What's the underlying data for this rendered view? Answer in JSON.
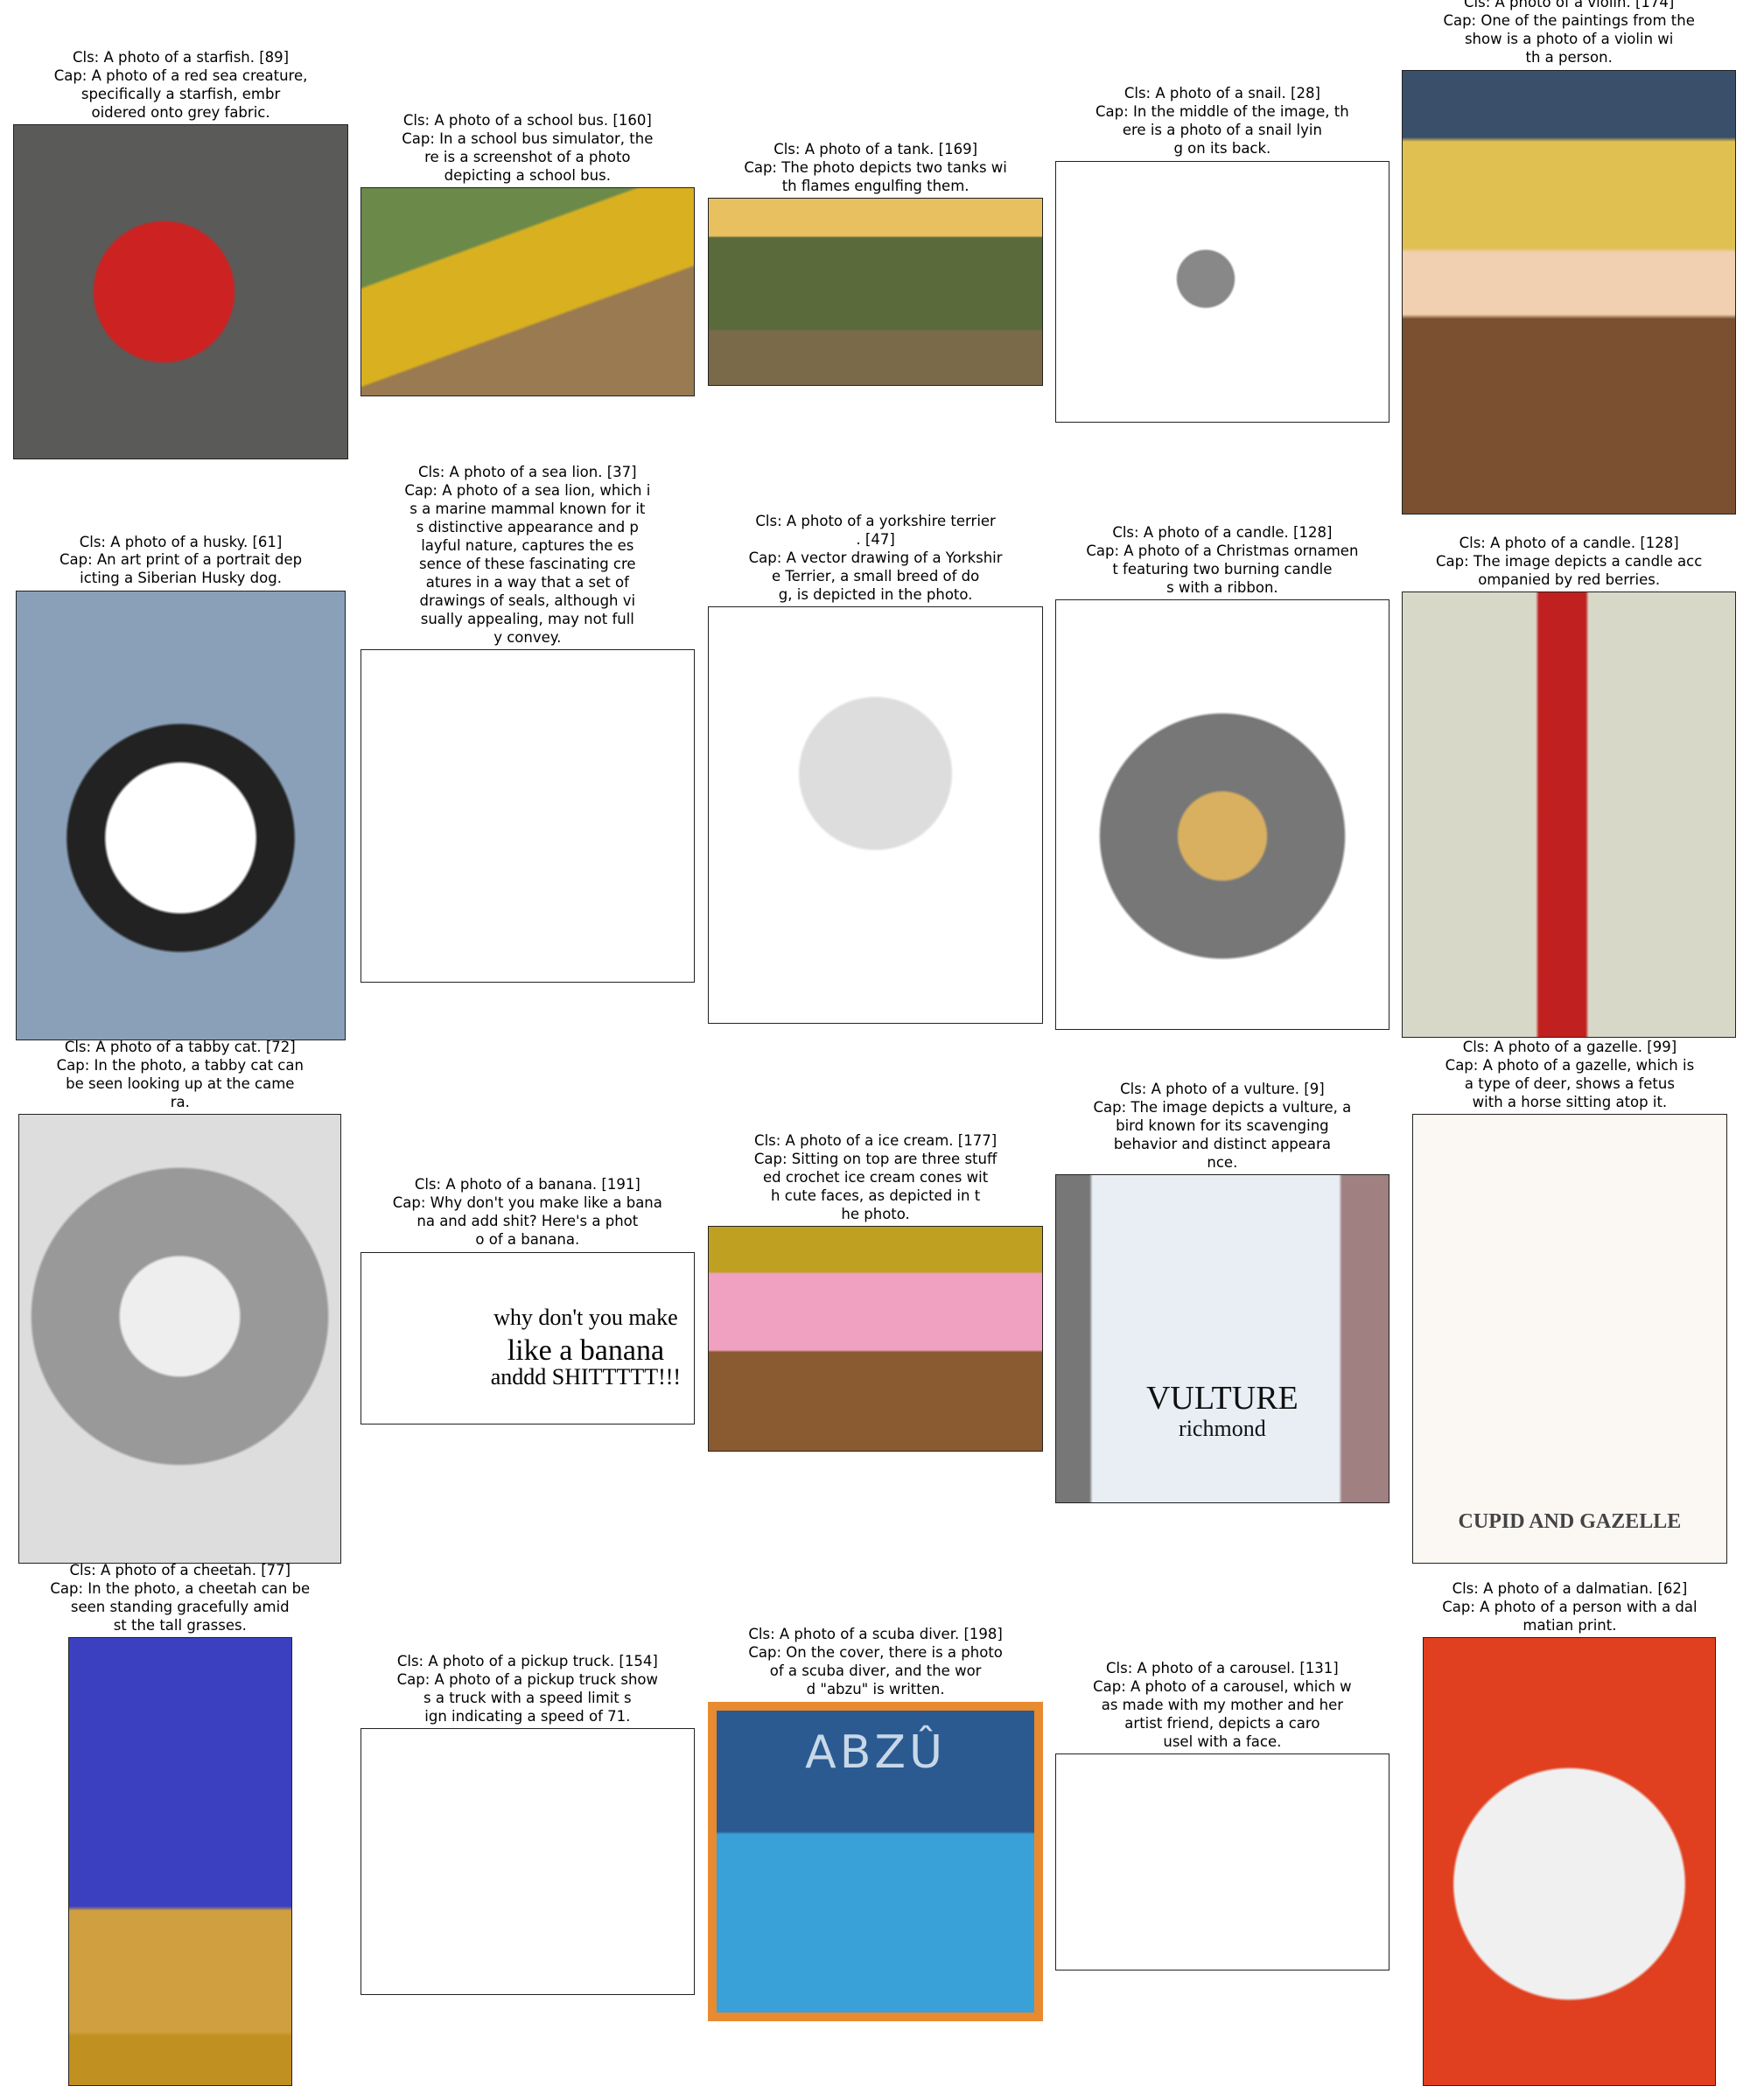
{
  "cells": [
    {
      "lines": [
        "Cls: A photo of a starfish. [89]",
        "Cap: A photo of a red sea creature,",
        "specifically a starfish, embr",
        "oidered onto grey fabric."
      ]
    },
    {
      "lines": [
        "Cls: A photo of a school bus. [160]",
        "Cap: In a school bus simulator, the",
        "re is a screenshot of a photo",
        "depicting a school bus."
      ]
    },
    {
      "lines": [
        "Cls: A photo of a tank. [169]",
        "Cap: The photo depicts two tanks wi",
        "th flames engulfing them."
      ]
    },
    {
      "lines": [
        "Cls: A photo of a snail. [28]",
        "Cap: In the middle of the image, th",
        "ere is a photo of a snail lyin",
        "g on its back."
      ]
    },
    {
      "lines": [
        "Cls: A photo of a violin. [174]",
        "Cap: One of the paintings from the",
        "show is a photo of a violin wi",
        "th a person."
      ]
    },
    {
      "lines": [
        "Cls: A photo of a husky. [61]",
        "Cap: An art print of a portrait dep",
        "icting a Siberian Husky dog."
      ]
    },
    {
      "lines": [
        "Cls: A photo of a sea lion. [37]",
        "Cap: A photo of a sea lion, which i",
        "s a marine mammal known for it",
        "s distinctive appearance and p",
        "layful nature, captures the es",
        "sence of these fascinating cre",
        "atures in a way that a set of",
        "drawings of seals, although vi",
        "sually appealing, may not full",
        "y convey."
      ]
    },
    {
      "lines": [
        "Cls: A photo of a yorkshire terrier",
        ". [47]",
        "Cap: A vector drawing of a Yorkshir",
        "e Terrier, a small breed of do",
        "g, is depicted in the photo."
      ]
    },
    {
      "lines": [
        "Cls: A photo of a candle. [128]",
        "Cap: A photo of a Christmas ornamen",
        "t featuring two burning candle",
        "s with a ribbon."
      ]
    },
    {
      "lines": [
        "Cls: A photo of a candle. [128]",
        "Cap: The image depicts a candle acc",
        "ompanied by red berries."
      ]
    },
    {
      "lines": [
        "Cls: A photo of a tabby cat. [72]",
        "Cap: In the photo, a tabby cat can",
        "be seen looking up at the came",
        "ra."
      ]
    },
    {
      "lines": [
        "Cls: A photo of a banana. [191]",
        "Cap: Why don't you make like a bana",
        "na and add shit? Here's a phot",
        "o of a banana."
      ],
      "image_text": [
        "why don't you make",
        "like a banana",
        "anddd SHITTTTT!!!"
      ]
    },
    {
      "lines": [
        "Cls: A photo of a ice cream. [177]",
        "Cap: Sitting on top are three stuff",
        "ed crochet ice cream cones wit",
        "h cute faces, as depicted in t",
        "he photo."
      ]
    },
    {
      "lines": [
        "Cls: A photo of a vulture. [9]",
        "Cap: The image depicts a vulture, a",
        "bird known for its scavenging",
        "behavior and distinct appeara",
        "nce."
      ],
      "image_text": [
        "VULTURE",
        "richmond"
      ]
    },
    {
      "lines": [
        "Cls: A photo of a gazelle. [99]",
        "Cap: A photo of a gazelle, which is",
        "a type of deer, shows a fetus",
        "with a horse sitting atop it."
      ],
      "image_text": [
        "CUPID AND GAZELLE"
      ]
    },
    {
      "lines": [
        "Cls: A photo of a cheetah. [77]",
        "Cap: In the photo, a cheetah can be",
        "seen standing gracefully amid",
        "st the tall grasses."
      ]
    },
    {
      "lines": [
        "Cls: A photo of a pickup truck. [154]",
        "Cap: A photo of a pickup truck show",
        "s a truck with a speed limit s",
        "ign indicating a speed of 71."
      ]
    },
    {
      "lines": [
        "Cls: A photo of a scuba diver. [198]",
        "Cap: On the cover, there is a photo",
        "of a scuba diver, and the wor",
        "d \"abzu\" is written."
      ],
      "image_text": [
        "ABZÛ"
      ]
    },
    {
      "lines": [
        "Cls: A photo of a carousel. [131]",
        "Cap: A photo of a carousel, which w",
        "as made with my mother and her",
        "artist friend, depicts a caro",
        "usel with a face."
      ]
    },
    {
      "lines": [
        "Cls: A photo of a dalmatian. [62]",
        "Cap: A photo of a person with a dal",
        "matian print."
      ]
    }
  ]
}
